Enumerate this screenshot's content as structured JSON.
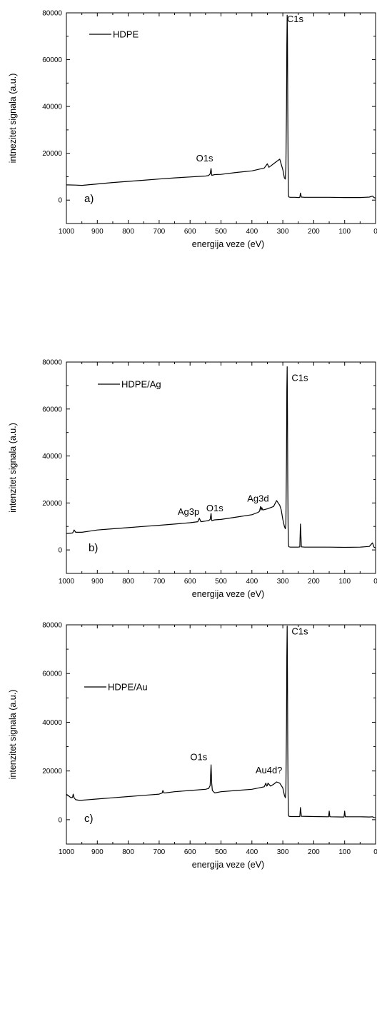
{
  "chart_data": [
    {
      "type": "line",
      "panel_label": "a)",
      "xlabel": "energija veze (eV)",
      "ylabel": "intnezitet signala (a.u.)",
      "xlim": [
        1000,
        0
      ],
      "ylim": [
        -10000,
        80000
      ],
      "x_ticks": [
        "1000",
        "900",
        "800",
        "700",
        "600",
        "500",
        "400",
        "300",
        "200",
        "100",
        "0"
      ],
      "y_ticks": [
        "0",
        "20000",
        "40000",
        "60000",
        "80000"
      ],
      "legend": "HDPE",
      "series": [
        {
          "name": "HDPE",
          "color": "#000000",
          "x": [
            1000,
            970,
            950,
            900,
            850,
            800,
            750,
            700,
            650,
            600,
            550,
            540,
            535,
            532,
            530,
            520,
            500,
            450,
            400,
            360,
            350,
            345,
            340,
            330,
            320,
            310,
            300,
            295,
            292,
            290,
            288,
            287,
            286,
            285,
            284,
            283,
            282,
            281,
            280,
            275,
            270,
            260,
            250,
            245,
            243,
            240,
            230,
            200,
            150,
            100,
            50,
            20,
            10,
            5,
            0
          ],
          "y": [
            6500,
            6400,
            6300,
            6900,
            7500,
            8000,
            8500,
            9000,
            9500,
            9900,
            10300,
            10500,
            11200,
            13500,
            10600,
            10900,
            11000,
            11800,
            12500,
            13700,
            15500,
            14000,
            14500,
            15500,
            16500,
            17500,
            13000,
            9500,
            9000,
            14000,
            40000,
            66000,
            79000,
            70000,
            40000,
            15000,
            3000,
            1500,
            1300,
            1200,
            1200,
            1200,
            1100,
            1200,
            3000,
            1300,
            1200,
            1200,
            1200,
            1100,
            1100,
            1300,
            1700,
            1100,
            800
          ]
        }
      ],
      "annotations": [
        {
          "text": "C1s",
          "x": 260,
          "y": 76000
        },
        {
          "text": "O1s",
          "x": 553,
          "y": 16500
        }
      ]
    },
    {
      "type": "line",
      "panel_label": "b)",
      "xlabel": "energija veze (eV)",
      "ylabel": "intenzitet signala (a.u.)",
      "xlim": [
        1000,
        0
      ],
      "ylim": [
        -10000,
        80000
      ],
      "x_ticks": [
        "1000",
        "900",
        "800",
        "700",
        "600",
        "500",
        "400",
        "300",
        "200",
        "100",
        "0"
      ],
      "y_ticks": [
        "0",
        "20000",
        "40000",
        "60000",
        "80000"
      ],
      "legend": "HDPE/Ag",
      "series": [
        {
          "name": "HDPE/Ag",
          "color": "#000000",
          "x": [
            1000,
            980,
            975,
            970,
            950,
            900,
            850,
            800,
            750,
            700,
            650,
            600,
            575,
            570,
            565,
            550,
            540,
            535,
            532,
            530,
            520,
            500,
            450,
            400,
            380,
            375,
            372,
            370,
            368,
            365,
            350,
            330,
            320,
            315,
            310,
            305,
            300,
            295,
            292,
            290,
            288,
            287,
            286,
            285,
            284,
            283,
            282,
            281,
            280,
            275,
            260,
            250,
            245,
            243,
            240,
            230,
            200,
            150,
            100,
            50,
            20,
            10,
            5,
            0
          ],
          "y": [
            7000,
            7200,
            8500,
            7500,
            7500,
            8500,
            9000,
            9500,
            10000,
            10500,
            11000,
            11600,
            12000,
            13500,
            12000,
            12300,
            12500,
            13000,
            15500,
            12500,
            12800,
            13000,
            14000,
            15000,
            16000,
            16500,
            18500,
            17000,
            18000,
            17000,
            17500,
            18500,
            21000,
            20000,
            19000,
            17000,
            13000,
            10000,
            9000,
            11000,
            40000,
            68000,
            78000,
            60000,
            30000,
            10000,
            3000,
            1500,
            1300,
            1200,
            1200,
            1200,
            1300,
            11000,
            1300,
            1200,
            1200,
            1200,
            1100,
            1200,
            1500,
            3000,
            1200,
            800
          ]
        }
      ],
      "annotations": [
        {
          "text": "C1s",
          "x": 245,
          "y": 72000
        },
        {
          "text": "Ag3d",
          "x": 380,
          "y": 20500
        },
        {
          "text": "O1s",
          "x": 520,
          "y": 16500
        },
        {
          "text": "Ag3p",
          "x": 605,
          "y": 15000
        }
      ]
    },
    {
      "type": "line",
      "panel_label": "c)",
      "xlabel": "energija veze (eV)",
      "ylabel": "intenzitet signala (a.u.)",
      "xlim": [
        1000,
        0
      ],
      "ylim": [
        -10000,
        80000
      ],
      "x_ticks": [
        "1000",
        "900",
        "800",
        "700",
        "600",
        "500",
        "400",
        "300",
        "200",
        "100",
        "0"
      ],
      "y_ticks": [
        "0",
        "20000",
        "40000",
        "60000",
        "80000"
      ],
      "legend": "HDPE/Au",
      "series": [
        {
          "name": "HDPE/Au",
          "color": "#000000",
          "x": [
            1000,
            990,
            985,
            980,
            978,
            975,
            970,
            960,
            950,
            900,
            850,
            800,
            750,
            700,
            690,
            688,
            685,
            680,
            650,
            600,
            550,
            540,
            535,
            532,
            530,
            528,
            520,
            500,
            450,
            400,
            360,
            355,
            352,
            350,
            348,
            340,
            330,
            320,
            310,
            300,
            295,
            292,
            290,
            288,
            287,
            286,
            285,
            284,
            283,
            282,
            281,
            280,
            275,
            260,
            250,
            245,
            243,
            240,
            200,
            155,
            152,
            150,
            148,
            145,
            105,
            102,
            100,
            98,
            95,
            50,
            20,
            10,
            5,
            0
          ],
          "y": [
            10500,
            9500,
            9000,
            9200,
            10500,
            9000,
            8200,
            8000,
            8000,
            8500,
            9000,
            9500,
            10000,
            10500,
            11000,
            12000,
            11000,
            11000,
            11500,
            12000,
            12500,
            12800,
            14000,
            22500,
            15000,
            12000,
            11000,
            11500,
            12000,
            12500,
            13500,
            15000,
            13800,
            14000,
            15000,
            13800,
            14500,
            15500,
            15000,
            13000,
            10000,
            9000,
            12000,
            40000,
            67000,
            79500,
            60000,
            30000,
            10000,
            3000,
            1500,
            1400,
            1300,
            1300,
            1300,
            1300,
            5000,
            1400,
            1300,
            1200,
            1200,
            3500,
            1300,
            1200,
            1100,
            1100,
            3500,
            1200,
            1200,
            1200,
            1100,
            1200,
            900,
            800
          ]
        }
      ],
      "annotations": [
        {
          "text": "C1s",
          "x": 245,
          "y": 76000
        },
        {
          "text": "O1s",
          "x": 572,
          "y": 24500
        },
        {
          "text": "Au4d?",
          "x": 345,
          "y": 19000
        }
      ]
    }
  ]
}
